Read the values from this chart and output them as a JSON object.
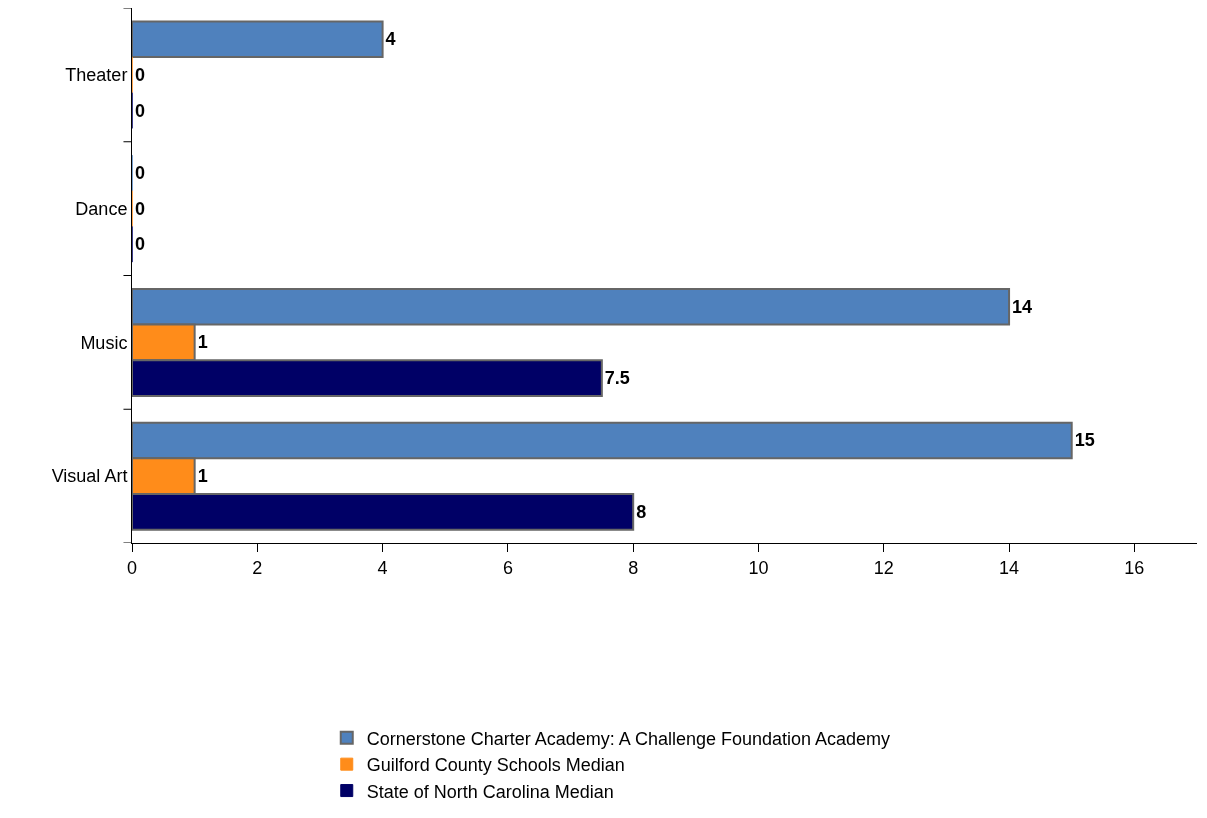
{
  "chart_data": {
    "type": "bar",
    "orientation": "horizontal",
    "categories": [
      "Theater",
      "Dance",
      "Music",
      "Visual Art"
    ],
    "series": [
      {
        "name": "Cornerstone Charter Academy: A Challenge Foundation Academy",
        "color": "#4f81bd",
        "values": [
          4,
          0,
          14,
          15
        ]
      },
      {
        "name": "Guilford County Schools Median",
        "color": "#ff8c1a",
        "values": [
          0,
          0,
          1,
          1
        ]
      },
      {
        "name": "State of North Carolina Median",
        "color": "#000066",
        "values": [
          0,
          0,
          7.5,
          8
        ]
      }
    ],
    "xlim": [
      0,
      17
    ],
    "xticks": [
      0,
      2,
      4,
      6,
      8,
      10,
      12,
      14,
      16
    ],
    "data_labels": true,
    "legend": "bottom"
  }
}
